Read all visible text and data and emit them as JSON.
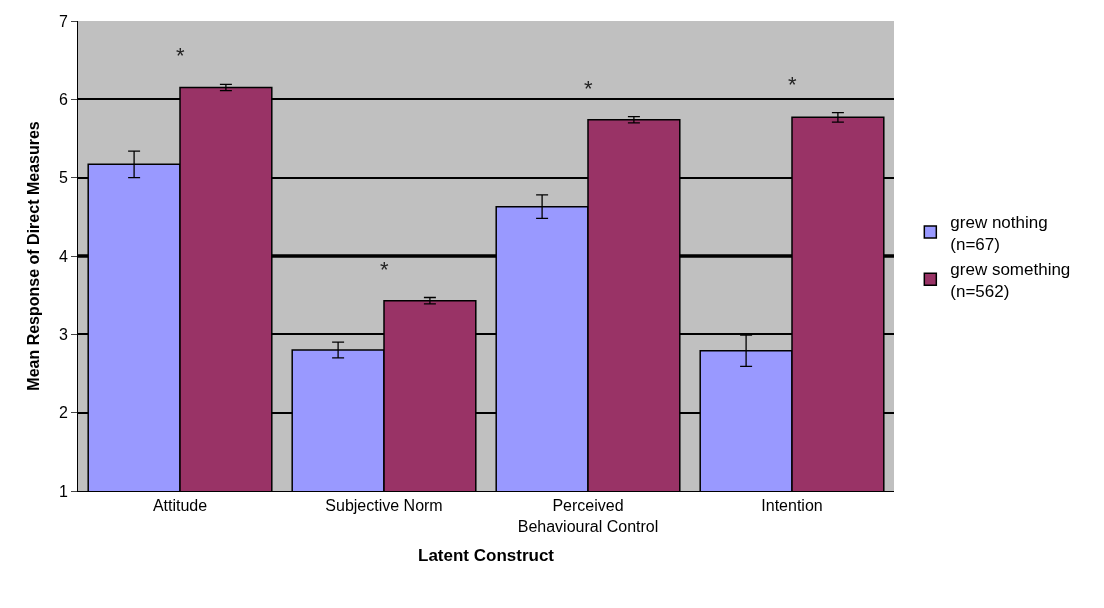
{
  "chart_data": {
    "type": "bar",
    "xlabel": "Latent Construct",
    "ylabel": "Mean Response of Direct Measures",
    "categories": [
      "Attitude",
      "Subjective Norm",
      "Perceived Behavioural Control",
      "Intention"
    ],
    "series": [
      {
        "name": "grew nothing (n=67)",
        "color": "#9999ff",
        "values": [
          5.17,
          2.8,
          4.63,
          2.79
        ],
        "errors": [
          0.17,
          0.1,
          0.15,
          0.2
        ]
      },
      {
        "name": "grew something (n=562)",
        "color": "#993366",
        "values": [
          6.15,
          3.43,
          5.74,
          5.77
        ],
        "errors": [
          0.04,
          0.04,
          0.04,
          0.06
        ]
      }
    ],
    "ylim": [
      1,
      7
    ],
    "yticks": [
      1,
      2,
      3,
      4,
      5,
      6,
      7
    ],
    "grid": "y",
    "legend": "right",
    "ref_lines": [
      {
        "axis": "y",
        "value": 4,
        "color": "#000000"
      }
    ],
    "annotations": [
      "*",
      "*",
      "*",
      "*"
    ]
  }
}
